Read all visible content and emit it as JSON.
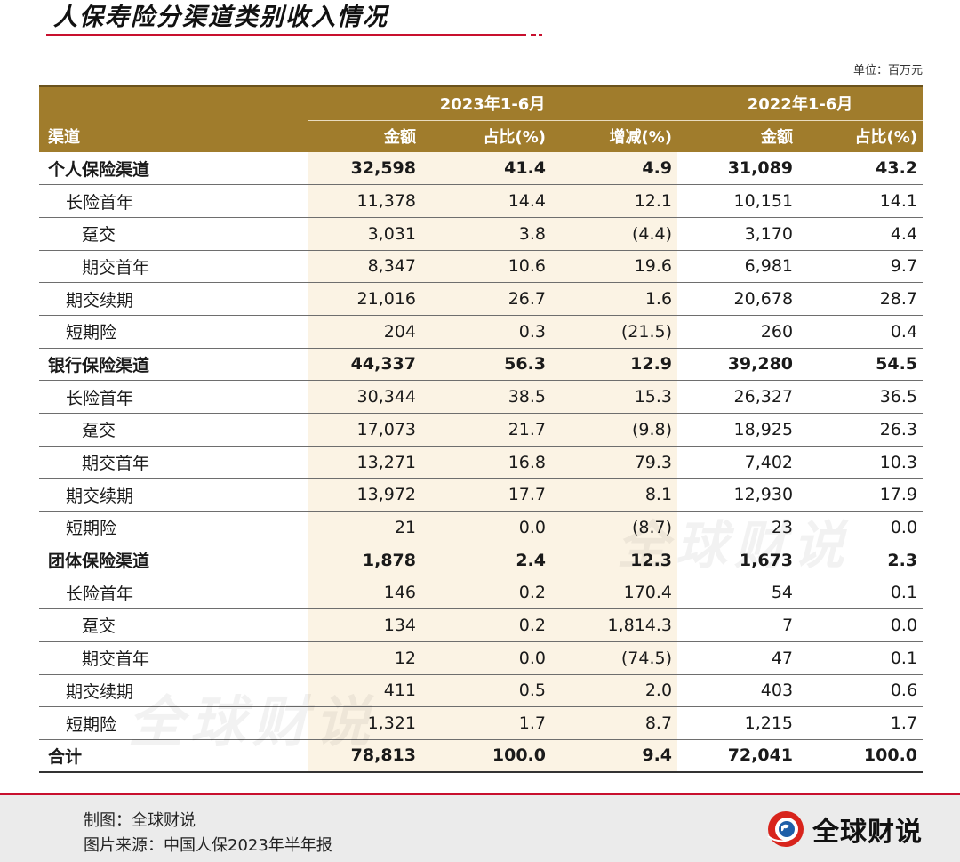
{
  "title": "人保寿险分渠道类别收入情况",
  "unit": "单位：百万元",
  "header": {
    "group_2023": "2023年1-6月",
    "group_2022": "2022年1-6月",
    "col_channel": "渠道",
    "col_amount_2023": "金额",
    "col_share_2023": "占比(%)",
    "col_change": "增减(%)",
    "col_amount_2022": "金额",
    "col_share_2022": "占比(%)"
  },
  "rows": [
    {
      "label": "个人保险渠道",
      "a23": "32,598",
      "s23": "41.4",
      "chg": "4.9",
      "a22": "31,089",
      "s22": "43.2"
    },
    {
      "label": "长险首年",
      "a23": "11,378",
      "s23": "14.4",
      "chg": "12.1",
      "a22": "10,151",
      "s22": "14.1"
    },
    {
      "label": "趸交",
      "a23": "3,031",
      "s23": "3.8",
      "chg": "(4.4)",
      "a22": "3,170",
      "s22": "4.4"
    },
    {
      "label": "期交首年",
      "a23": "8,347",
      "s23": "10.6",
      "chg": "19.6",
      "a22": "6,981",
      "s22": "9.7"
    },
    {
      "label": "期交续期",
      "a23": "21,016",
      "s23": "26.7",
      "chg": "1.6",
      "a22": "20,678",
      "s22": "28.7"
    },
    {
      "label": "短期险",
      "a23": "204",
      "s23": "0.3",
      "chg": "(21.5)",
      "a22": "260",
      "s22": "0.4"
    },
    {
      "label": "银行保险渠道",
      "a23": "44,337",
      "s23": "56.3",
      "chg": "12.9",
      "a22": "39,280",
      "s22": "54.5"
    },
    {
      "label": "长险首年",
      "a23": "30,344",
      "s23": "38.5",
      "chg": "15.3",
      "a22": "26,327",
      "s22": "36.5"
    },
    {
      "label": "趸交",
      "a23": "17,073",
      "s23": "21.7",
      "chg": "(9.8)",
      "a22": "18,925",
      "s22": "26.3"
    },
    {
      "label": "期交首年",
      "a23": "13,271",
      "s23": "16.8",
      "chg": "79.3",
      "a22": "7,402",
      "s22": "10.3"
    },
    {
      "label": "期交续期",
      "a23": "13,972",
      "s23": "17.7",
      "chg": "8.1",
      "a22": "12,930",
      "s22": "17.9"
    },
    {
      "label": "短期险",
      "a23": "21",
      "s23": "0.0",
      "chg": "(8.7)",
      "a22": "23",
      "s22": "0.0"
    },
    {
      "label": "团体保险渠道",
      "a23": "1,878",
      "s23": "2.4",
      "chg": "12.3",
      "a22": "1,673",
      "s22": "2.3"
    },
    {
      "label": "长险首年",
      "a23": "146",
      "s23": "0.2",
      "chg": "170.4",
      "a22": "54",
      "s22": "0.1"
    },
    {
      "label": "趸交",
      "a23": "134",
      "s23": "0.2",
      "chg": "1,814.3",
      "a22": "7",
      "s22": "0.0"
    },
    {
      "label": "期交首年",
      "a23": "12",
      "s23": "0.0",
      "chg": "(74.5)",
      "a22": "47",
      "s22": "0.1"
    },
    {
      "label": "期交续期",
      "a23": "411",
      "s23": "0.5",
      "chg": "2.0",
      "a22": "403",
      "s22": "0.6"
    },
    {
      "label": "短期险",
      "a23": "1,321",
      "s23": "1.7",
      "chg": "8.7",
      "a22": "1,215",
      "s22": "1.7"
    },
    {
      "label": "合计",
      "a23": "78,813",
      "s23": "100.0",
      "chg": "9.4",
      "a22": "72,041",
      "s22": "100.0"
    }
  ],
  "watermark": "全球财说",
  "footer": {
    "made_by": "制图：全球财说",
    "source": "图片来源：中国人保2023年半年报",
    "brand": "全球财说"
  }
}
